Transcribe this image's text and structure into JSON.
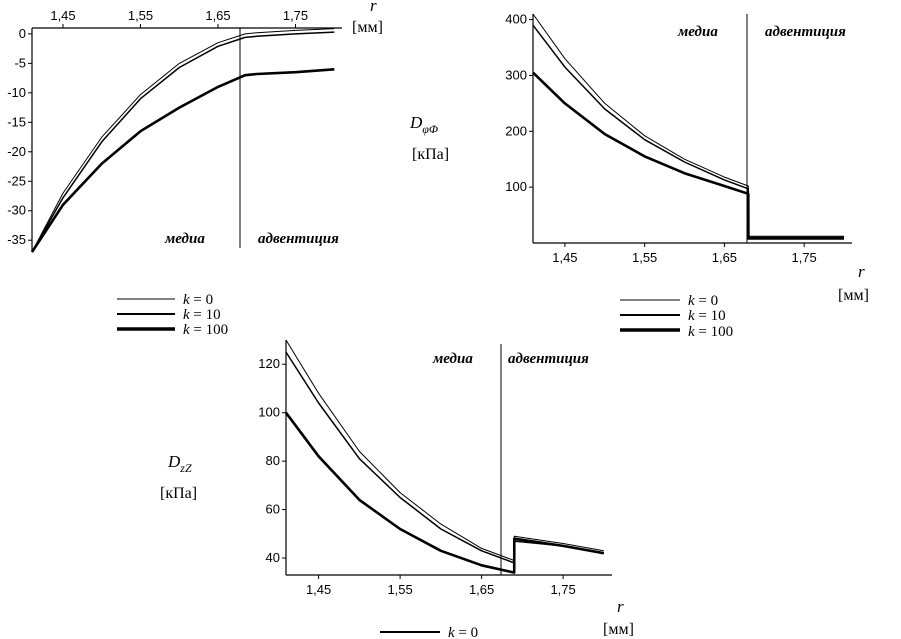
{
  "chart_data": [
    {
      "type": "line",
      "id": "chart1",
      "title": "",
      "xlabel": "r",
      "xunit": "[мм]",
      "ylabel": "",
      "yunit": "",
      "xlim": [
        1.41,
        1.81
      ],
      "ylim": [
        -37,
        1
      ],
      "x_axis_position": "top",
      "xticks": [
        1.45,
        1.55,
        1.65,
        1.75
      ],
      "xtick_labels": [
        "1,45",
        "1,55",
        "1,65",
        "1,75"
      ],
      "yticks": [
        0,
        -5,
        -10,
        -15,
        -20,
        -25,
        -30,
        -35
      ],
      "ytick_labels": [
        "0",
        "-5",
        "-10",
        "-15",
        "-20",
        "-25",
        "-30",
        "-35"
      ],
      "boundary_x": 1.685,
      "regions": [
        "медиа",
        "адвентиция"
      ],
      "series": [
        {
          "name": "k = 0",
          "stroke": 1,
          "x": [
            1.41,
            1.45,
            1.5,
            1.55,
            1.6,
            1.65,
            1.685,
            1.7,
            1.75,
            1.8
          ],
          "y": [
            -37,
            -27,
            -17.5,
            -10.3,
            -5,
            -1.5,
            0,
            0.2,
            0.6,
            0.9
          ]
        },
        {
          "name": "k = 10",
          "stroke": 1.5,
          "x": [
            1.41,
            1.45,
            1.5,
            1.55,
            1.6,
            1.65,
            1.685,
            1.7,
            1.75,
            1.8
          ],
          "y": [
            -37,
            -27.8,
            -18.3,
            -11,
            -5.7,
            -2.1,
            -0.6,
            -0.4,
            0,
            0.3
          ]
        },
        {
          "name": "k = 100",
          "stroke": 2.6,
          "x": [
            1.41,
            1.45,
            1.5,
            1.55,
            1.6,
            1.65,
            1.685,
            1.7,
            1.75,
            1.8
          ],
          "y": [
            -37,
            -29,
            -22,
            -16.5,
            -12.5,
            -9,
            -7,
            -6.8,
            -6.5,
            -6
          ]
        }
      ]
    },
    {
      "type": "line",
      "id": "chart2",
      "title": "",
      "xlabel": "r",
      "xunit": "[мм]",
      "ylabel": "DφΦ",
      "ylabel_main": "D",
      "ylabel_sub": "φΦ",
      "yunit": "[кПа]",
      "xlim": [
        1.41,
        1.81
      ],
      "ylim": [
        0,
        410
      ],
      "xticks": [
        1.45,
        1.55,
        1.65,
        1.75
      ],
      "xtick_labels": [
        "1,45",
        "1,55",
        "1,65",
        "1,75"
      ],
      "yticks": [
        100,
        200,
        300,
        400
      ],
      "ytick_labels": [
        "100",
        "200",
        "300",
        "400"
      ],
      "boundary_x": 1.685,
      "regions": [
        "медиа",
        "адвентиция"
      ],
      "series": [
        {
          "name": "k = 0",
          "stroke": 1,
          "x": [
            1.41,
            1.45,
            1.5,
            1.55,
            1.6,
            1.65,
            1.68,
            1.6801,
            1.8
          ],
          "y": [
            410,
            330,
            250,
            192,
            150,
            118,
            102,
            12,
            12
          ]
        },
        {
          "name": "k = 10",
          "stroke": 1.5,
          "x": [
            1.41,
            1.45,
            1.5,
            1.55,
            1.6,
            1.65,
            1.68,
            1.6801,
            1.8
          ],
          "y": [
            390,
            315,
            240,
            185,
            145,
            113,
            97,
            10,
            10
          ]
        },
        {
          "name": "k = 100",
          "stroke": 2.6,
          "x": [
            1.41,
            1.45,
            1.5,
            1.55,
            1.6,
            1.65,
            1.68,
            1.6801,
            1.8
          ],
          "y": [
            305,
            250,
            195,
            155,
            125,
            102,
            88,
            8,
            8
          ]
        }
      ]
    },
    {
      "type": "line",
      "id": "chart3",
      "title": "",
      "xlabel": "r",
      "xunit": "[мм]",
      "ylabel": "DzZ",
      "ylabel_main": "D",
      "ylabel_sub": "zZ",
      "yunit": "[кПа]",
      "xlim": [
        1.41,
        1.81
      ],
      "ylim": [
        33,
        130
      ],
      "xticks": [
        1.45,
        1.55,
        1.65,
        1.75
      ],
      "xtick_labels": [
        "1,45",
        "1,55",
        "1,65",
        "1,75"
      ],
      "yticks": [
        40,
        60,
        80,
        100,
        120
      ],
      "ytick_labels": [
        "40",
        "60",
        "80",
        "100",
        "120"
      ],
      "boundary_x": 1.69,
      "regions": [
        "медиа",
        "адвентиция"
      ],
      "series": [
        {
          "name": "k = 0",
          "stroke": 1,
          "x": [
            1.41,
            1.45,
            1.5,
            1.55,
            1.6,
            1.65,
            1.69,
            1.6901,
            1.75,
            1.8
          ],
          "y": [
            130,
            108,
            84,
            67,
            54,
            44,
            39,
            49,
            46,
            43
          ]
        },
        {
          "name": "k = 10",
          "stroke": 1.5,
          "x": [
            1.41,
            1.45,
            1.5,
            1.55,
            1.6,
            1.65,
            1.69,
            1.6901,
            1.75,
            1.8
          ],
          "y": [
            125,
            104,
            81,
            65,
            52,
            43,
            38,
            47,
            45,
            42
          ]
        },
        {
          "name": "k = 100",
          "stroke": 2.6,
          "x": [
            1.41,
            1.45,
            1.5,
            1.55,
            1.6,
            1.65,
            1.69,
            1.6901,
            1.75,
            1.8
          ],
          "y": [
            100,
            82,
            64,
            52,
            43,
            37,
            34,
            48,
            45,
            42
          ]
        }
      ]
    }
  ],
  "legends": [
    {
      "id": "legend1",
      "entries": [
        {
          "k": "k",
          "eq": " = 0",
          "stroke": 1
        },
        {
          "k": "k",
          "eq": " = 10",
          "stroke": 2
        },
        {
          "k": "k",
          "eq": " = 100",
          "stroke": 3.5
        }
      ]
    },
    {
      "id": "legend2",
      "entries": [
        {
          "k": "k",
          "eq": " = 0",
          "stroke": 1
        },
        {
          "k": "k",
          "eq": " = 10",
          "stroke": 2
        },
        {
          "k": "k",
          "eq": " = 100",
          "stroke": 3.5
        }
      ]
    },
    {
      "id": "legend3",
      "entries": [
        {
          "k": "k",
          "eq": " = 0",
          "stroke": 2
        }
      ]
    }
  ]
}
